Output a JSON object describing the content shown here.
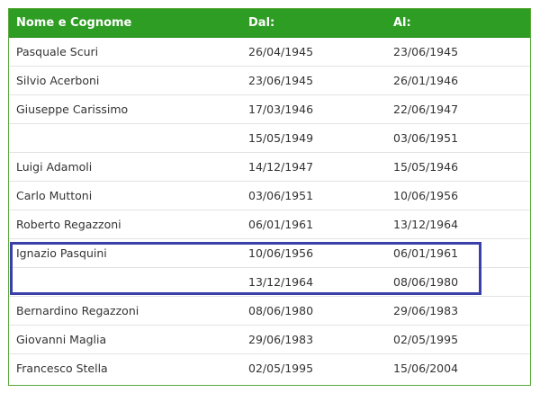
{
  "table": {
    "headers": [
      "Nome e Cognome",
      "Dal:",
      "Al:"
    ],
    "rows": [
      [
        "Pasquale Scuri",
        "26/04/1945",
        "23/06/1945"
      ],
      [
        "Silvio Acerboni",
        "23/06/1945",
        "26/01/1946"
      ],
      [
        "Giuseppe Carissimo",
        "17/03/1946",
        "22/06/1947"
      ],
      [
        "",
        "15/05/1949",
        "03/06/1951"
      ],
      [
        "Luigi Adamoli",
        "14/12/1947",
        "15/05/1946"
      ],
      [
        "Carlo Muttoni",
        "03/06/1951",
        "10/06/1956"
      ],
      [
        "Roberto Regazzoni",
        "06/01/1961",
        "13/12/1964"
      ],
      [
        "Ignazio Pasquini",
        "10/06/1956",
        "06/01/1961"
      ],
      [
        "",
        "13/12/1964",
        "08/06/1980"
      ],
      [
        "Bernardino Regazzoni",
        "08/06/1980",
        "29/06/1983"
      ],
      [
        "Giovanni Maglia",
        "29/06/1983",
        "02/05/1995"
      ],
      [
        "Francesco Stella",
        "02/05/1995",
        "15/06/2004"
      ]
    ]
  },
  "highlight": {
    "border_color": "#3b3fa8",
    "rows_indices": [
      7,
      8
    ]
  },
  "colors": {
    "header_bg": "#2e9d23",
    "header_text": "#ffffff",
    "body_text": "#333333",
    "row_divider": "#e3e3e3"
  }
}
